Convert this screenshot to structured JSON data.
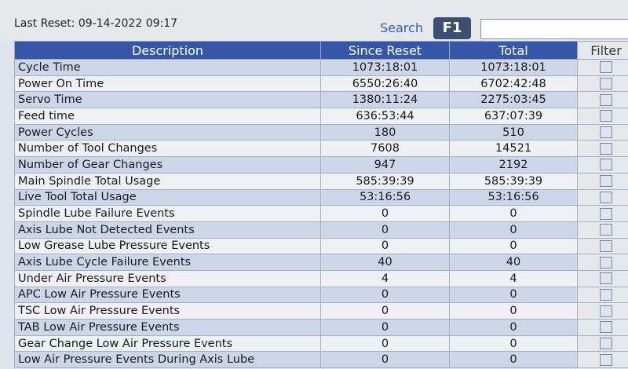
{
  "header": {
    "last_reset": "Last Reset: 09-14-2022 09:17",
    "search_label": "Search",
    "search_key": "F1"
  },
  "table": {
    "columns": [
      "Description",
      "Since Reset",
      "Total",
      "Filter"
    ],
    "rows": [
      [
        "Cycle Time",
        "1073:18:01",
        "1073:18:01"
      ],
      [
        "Power On Time",
        "6550:26:40",
        "6702:42:48"
      ],
      [
        "Servo Time",
        "1380:11:24",
        "2275:03:45"
      ],
      [
        "Feed time",
        "636:53:44",
        "637:07:39"
      ],
      [
        "Power Cycles",
        "180",
        "510"
      ],
      [
        "Number of Tool Changes",
        "7608",
        "14521"
      ],
      [
        "Number of Gear Changes",
        "947",
        "2192"
      ],
      [
        "Main Spindle Total Usage",
        "585:39:39",
        "585:39:39"
      ],
      [
        "Live Tool Total Usage",
        "53:16:56",
        "53:16:56"
      ],
      [
        "Spindle Lube Failure Events",
        "0",
        "0"
      ],
      [
        "Axis Lube Not Detected Events",
        "0",
        "0"
      ],
      [
        "Low Grease Lube Pressure Events",
        "0",
        "0"
      ],
      [
        "Axis Lube Cycle Failure Events",
        "40",
        "40"
      ],
      [
        "Under Air Pressure Events",
        "4",
        "4"
      ],
      [
        "APC Low Air Pressure Events",
        "0",
        "0"
      ],
      [
        "TSC Low Air Pressure Events",
        "0",
        "0"
      ],
      [
        "TAB Low Air Pressure Events",
        "0",
        "0"
      ],
      [
        "Gear Change Low Air Pressure Events",
        "0",
        "0"
      ],
      [
        "Low Air Pressure Events During Axis Lube",
        "0",
        "0"
      ]
    ]
  }
}
